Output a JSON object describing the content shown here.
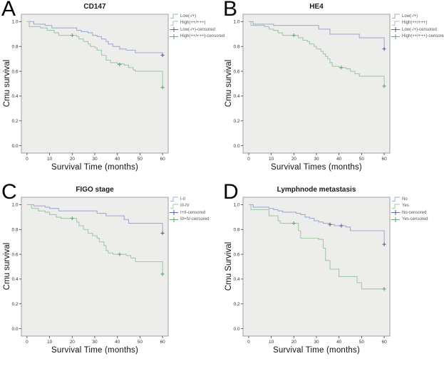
{
  "colors": {
    "blue": "#a2abd3",
    "green": "#a2c9a8",
    "blue_dark": "#47589f",
    "green_dark": "#57a263",
    "plot_bg": "#ededec",
    "frame": "#8a8a8a",
    "tick": "#3a3a3a",
    "tick_text": "#333333",
    "legend_text": "#555555"
  },
  "axis": {
    "x_ticks": [
      0,
      10,
      20,
      30,
      40,
      50,
      60
    ],
    "y_ticks": [
      0.0,
      0.2,
      0.4,
      0.6,
      0.8,
      1.0
    ],
    "y_tick_labels": [
      "0.0",
      "0.2",
      "0.4",
      "0.6",
      "0.8",
      "1.0"
    ],
    "xlim": [
      -2.5,
      62.5
    ],
    "ylim": [
      -0.06,
      1.06
    ],
    "grid": false,
    "legend_position": "upper-right-outside"
  },
  "chart_data": [
    {
      "type": "line",
      "subtype": "kaplan-meier-step",
      "letter": "A",
      "title": "CD147",
      "xlabel": "Survival Time (months)",
      "ylabel": "Cmu survival",
      "legend_items": [
        {
          "label": "Low(-/+)",
          "glyph": "step",
          "color_key": "blue"
        },
        {
          "label": "High(++/+++)",
          "glyph": "step",
          "color_key": "green"
        },
        {
          "label": "Low(-/+)-censored",
          "glyph": "censor",
          "color_key": "blue_dark"
        },
        {
          "label": "High(++/+++)-censored",
          "glyph": "censor",
          "color_key": "green_dark"
        }
      ],
      "series": [
        {
          "name": "Low(-/+)",
          "color_key": "blue",
          "censor_color_key": "blue_dark",
          "steps": [
            [
              0,
              1.0
            ],
            [
              3,
              0.98
            ],
            [
              8,
              0.97
            ],
            [
              11,
              0.95
            ],
            [
              22,
              0.93
            ],
            [
              24,
              0.92
            ],
            [
              27,
              0.91
            ],
            [
              29,
              0.89
            ],
            [
              31,
              0.88
            ],
            [
              33,
              0.86
            ],
            [
              35,
              0.84
            ],
            [
              36,
              0.82
            ],
            [
              38,
              0.8
            ],
            [
              41,
              0.78
            ],
            [
              44,
              0.77
            ],
            [
              48,
              0.75
            ],
            [
              60,
              0.73
            ]
          ],
          "censored": [
            [
              60,
              0.73
            ]
          ]
        },
        {
          "name": "High(++/+++)",
          "color_key": "green",
          "censor_color_key": "green_dark",
          "steps": [
            [
              0,
              1.0
            ],
            [
              1,
              0.96
            ],
            [
              6,
              0.95
            ],
            [
              9,
              0.93
            ],
            [
              12,
              0.91
            ],
            [
              14,
              0.89
            ],
            [
              22,
              0.88
            ],
            [
              23,
              0.86
            ],
            [
              25,
              0.84
            ],
            [
              27,
              0.82
            ],
            [
              28,
              0.8
            ],
            [
              30,
              0.79
            ],
            [
              31,
              0.77
            ],
            [
              33,
              0.73
            ],
            [
              35,
              0.69
            ],
            [
              37,
              0.67
            ],
            [
              40,
              0.66
            ],
            [
              43,
              0.65
            ],
            [
              45,
              0.63
            ],
            [
              47,
              0.61
            ],
            [
              48,
              0.6
            ],
            [
              60,
              0.47
            ]
          ],
          "censored": [
            [
              20,
              0.89
            ],
            [
              41,
              0.655
            ],
            [
              60,
              0.47
            ]
          ]
        }
      ]
    },
    {
      "type": "line",
      "subtype": "kaplan-meier-step",
      "letter": "B",
      "title": "HE4",
      "xlabel": "Survival Times (months)",
      "ylabel": "Cmu survival",
      "legend_items": [
        {
          "label": "Low(-/+)",
          "glyph": "step",
          "color_key": "blue"
        },
        {
          "label": "High(++/+++)",
          "glyph": "step",
          "color_key": "green"
        },
        {
          "label": "Low(-/+)-censored",
          "glyph": "censor",
          "color_key": "blue_dark"
        },
        {
          "label": "High(++/+++)-censored",
          "glyph": "censor",
          "color_key": "green_dark"
        }
      ],
      "series": [
        {
          "name": "Low(-/+)",
          "color_key": "blue",
          "censor_color_key": "blue_dark",
          "steps": [
            [
              0,
              1.0
            ],
            [
              2,
              0.98
            ],
            [
              11,
              0.97
            ],
            [
              31,
              0.94
            ],
            [
              36,
              0.9
            ],
            [
              49,
              0.87
            ],
            [
              60,
              0.78
            ]
          ],
          "censored": [
            [
              60,
              0.78
            ]
          ]
        },
        {
          "name": "High(++/+++)",
          "color_key": "green",
          "censor_color_key": "green_dark",
          "steps": [
            [
              0,
              1.0
            ],
            [
              1,
              0.97
            ],
            [
              7,
              0.96
            ],
            [
              9,
              0.94
            ],
            [
              11,
              0.93
            ],
            [
              13,
              0.91
            ],
            [
              15,
              0.89
            ],
            [
              22,
              0.87
            ],
            [
              24,
              0.85
            ],
            [
              26,
              0.84
            ],
            [
              27,
              0.82
            ],
            [
              29,
              0.8
            ],
            [
              30,
              0.78
            ],
            [
              32,
              0.76
            ],
            [
              33,
              0.74
            ],
            [
              34,
              0.72
            ],
            [
              35,
              0.7
            ],
            [
              36,
              0.67
            ],
            [
              37,
              0.64
            ],
            [
              40,
              0.63
            ],
            [
              43,
              0.62
            ],
            [
              45,
              0.6
            ],
            [
              47,
              0.58
            ],
            [
              49,
              0.56
            ],
            [
              60,
              0.48
            ]
          ],
          "censored": [
            [
              20,
              0.89
            ],
            [
              41,
              0.63
            ],
            [
              60,
              0.48
            ]
          ]
        }
      ]
    },
    {
      "type": "line",
      "subtype": "kaplan-meier-step",
      "letter": "C",
      "title": "FIGO stage",
      "xlabel": "Survival Time (months)",
      "ylabel": "Cmu survival",
      "legend_items": [
        {
          "label": "I-II",
          "glyph": "step",
          "color_key": "blue"
        },
        {
          "label": "III-IV",
          "glyph": "step",
          "color_key": "green"
        },
        {
          "label": "I+II-censored",
          "glyph": "censor",
          "color_key": "blue_dark"
        },
        {
          "label": "III+IV-censored",
          "glyph": "censor",
          "color_key": "green_dark"
        }
      ],
      "series": [
        {
          "name": "I-II",
          "color_key": "blue",
          "censor_color_key": "blue_dark",
          "steps": [
            [
              0,
              1.0
            ],
            [
              3,
              0.99
            ],
            [
              8,
              0.98
            ],
            [
              10,
              0.97
            ],
            [
              14,
              0.95
            ],
            [
              31,
              0.93
            ],
            [
              35,
              0.91
            ],
            [
              43,
              0.88
            ],
            [
              45,
              0.85
            ],
            [
              60,
              0.77
            ]
          ],
          "censored": [
            [
              60,
              0.77
            ]
          ]
        },
        {
          "name": "III-IV",
          "color_key": "green",
          "censor_color_key": "green_dark",
          "steps": [
            [
              0,
              1.0
            ],
            [
              2,
              0.97
            ],
            [
              5,
              0.95
            ],
            [
              8,
              0.94
            ],
            [
              10,
              0.92
            ],
            [
              13,
              0.9
            ],
            [
              15,
              0.89
            ],
            [
              22,
              0.86
            ],
            [
              23,
              0.83
            ],
            [
              25,
              0.8
            ],
            [
              27,
              0.77
            ],
            [
              29,
              0.75
            ],
            [
              31,
              0.73
            ],
            [
              32,
              0.7
            ],
            [
              34,
              0.67
            ],
            [
              35,
              0.63
            ],
            [
              36,
              0.61
            ],
            [
              38,
              0.6
            ],
            [
              44,
              0.59
            ],
            [
              46,
              0.57
            ],
            [
              48,
              0.54
            ],
            [
              60,
              0.44
            ]
          ],
          "censored": [
            [
              20,
              0.89
            ],
            [
              41,
              0.6
            ],
            [
              60,
              0.44
            ]
          ]
        }
      ]
    },
    {
      "type": "line",
      "subtype": "kaplan-meier-step",
      "letter": "D",
      "title": "Lymphnode metastasis",
      "xlabel": "Survival Time (months)",
      "ylabel": "Cmu Survival",
      "legend_items": [
        {
          "label": "No",
          "glyph": "step",
          "color_key": "blue"
        },
        {
          "label": "Yes",
          "glyph": "step",
          "color_key": "green"
        },
        {
          "label": "No-censored",
          "glyph": "censor",
          "color_key": "blue_dark"
        },
        {
          "label": "Yes-censored",
          "glyph": "censor",
          "color_key": "green_dark"
        }
      ],
      "series": [
        {
          "name": "No",
          "color_key": "blue",
          "censor_color_key": "blue_dark",
          "steps": [
            [
              0,
              1.0
            ],
            [
              2,
              0.98
            ],
            [
              9,
              0.97
            ],
            [
              11,
              0.96
            ],
            [
              13,
              0.95
            ],
            [
              15,
              0.94
            ],
            [
              21,
              0.93
            ],
            [
              23,
              0.92
            ],
            [
              25,
              0.9
            ],
            [
              27,
              0.89
            ],
            [
              29,
              0.87
            ],
            [
              31,
              0.86
            ],
            [
              33,
              0.85
            ],
            [
              36,
              0.84
            ],
            [
              38,
              0.83
            ],
            [
              43,
              0.82
            ],
            [
              45,
              0.79
            ],
            [
              60,
              0.68
            ]
          ],
          "censored": [
            [
              36,
              0.84
            ],
            [
              41,
              0.83
            ],
            [
              60,
              0.68
            ]
          ]
        },
        {
          "name": "Yes",
          "color_key": "green",
          "censor_color_key": "green_dark",
          "steps": [
            [
              0,
              1.0
            ],
            [
              1,
              0.96
            ],
            [
              9,
              0.91
            ],
            [
              13,
              0.87
            ],
            [
              14,
              0.85
            ],
            [
              22,
              0.79
            ],
            [
              23,
              0.73
            ],
            [
              31,
              0.72
            ],
            [
              33,
              0.65
            ],
            [
              34,
              0.55
            ],
            [
              36,
              0.48
            ],
            [
              40,
              0.42
            ],
            [
              48,
              0.37
            ],
            [
              50,
              0.32
            ],
            [
              60,
              0.32
            ]
          ],
          "censored": [
            [
              20,
              0.85
            ],
            [
              60,
              0.32
            ]
          ]
        }
      ]
    }
  ]
}
